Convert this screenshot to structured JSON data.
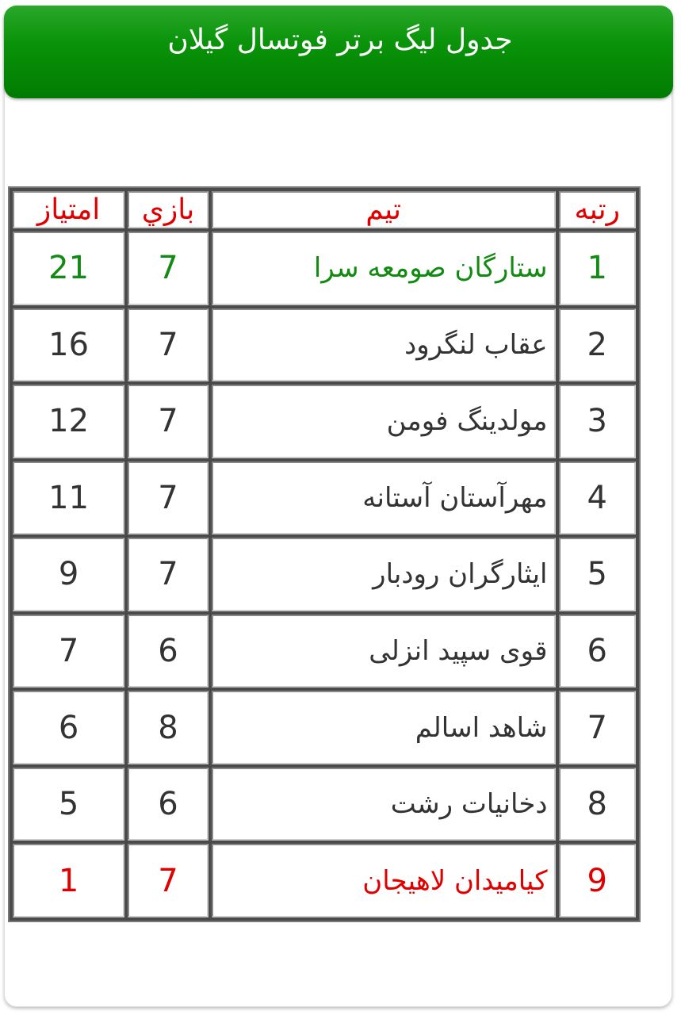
{
  "title": "جدول لیگ برتر فوتسال گیلان",
  "colors": {
    "header_green": "#0a930a",
    "leader": "#138a13",
    "relegation": "#e00000",
    "header_text": "#e00000"
  },
  "columns": {
    "rank": "رتبه",
    "team": "تیم",
    "games": "بازي",
    "points": "امتیاز"
  },
  "rows": [
    {
      "rank": "1",
      "team": "ستارگان صومعه سرا",
      "games": "7",
      "points": "21"
    },
    {
      "rank": "2",
      "team": "عقاب لنگرود",
      "games": "7",
      "points": "16"
    },
    {
      "rank": "3",
      "team": "مولدینگ فومن",
      "games": "7",
      "points": "12"
    },
    {
      "rank": "4",
      "team": "مهرآستان آستانه",
      "games": "7",
      "points": "11"
    },
    {
      "rank": "5",
      "team": "ایثارگران رودبار",
      "games": "7",
      "points": "9"
    },
    {
      "rank": "6",
      "team": "قوی سپید انزلی",
      "games": "6",
      "points": "7"
    },
    {
      "rank": "7",
      "team": "شاهد اسالم",
      "games": "8",
      "points": "6"
    },
    {
      "rank": "8",
      "team": "دخانیات رشت",
      "games": "6",
      "points": "5"
    },
    {
      "rank": "9",
      "team": "کیامیدان لاهیجان",
      "games": "7",
      "points": "1"
    }
  ]
}
